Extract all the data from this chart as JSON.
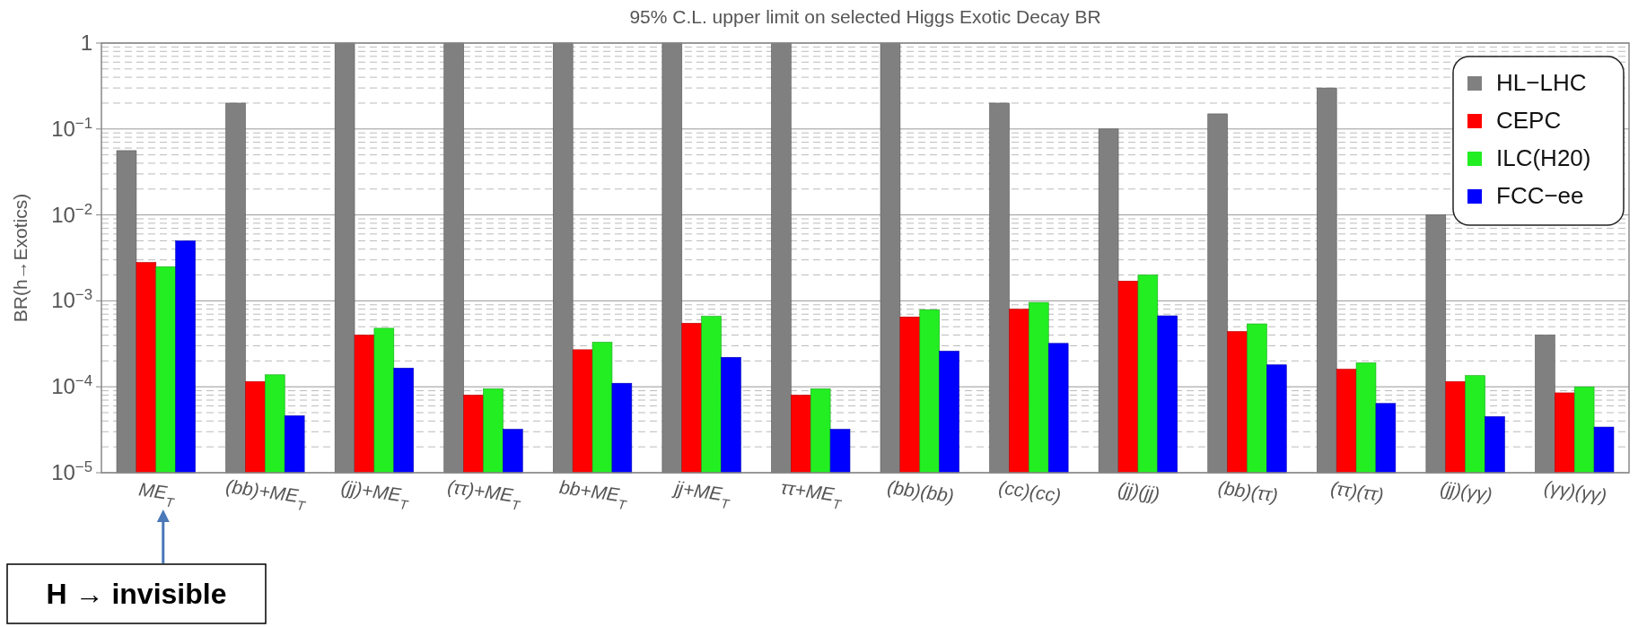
{
  "chart_data": {
    "type": "bar",
    "title": "95% C.L. upper limit on selected Higgs Exotic Decay BR",
    "ylabel": "BR(h→Exotics)",
    "categories": [
      "ME$_{T}$",
      "(bb)+ME$_{T}$",
      "(jj)+ME$_{T}$",
      "(ττ)+ME$_{T}$",
      "bb+ME$_{T}$",
      "jj+ME$_{T}$",
      "ττ+ME$_{T}$",
      "(bb)(bb)",
      "(cc)(cc)",
      "(jj)(jj)",
      "(bb)(ττ)",
      "(ττ)(ττ)",
      "(jj)(γγ)",
      "(γγ)(γγ)"
    ],
    "series": [
      {
        "name": "HL−LHC",
        "color": "#808080",
        "values": [
          0.056,
          0.2,
          1,
          1,
          1,
          1,
          1,
          1,
          0.2,
          0.1,
          0.15,
          0.3,
          0.01,
          0.0004
        ]
      },
      {
        "name": "CEPC",
        "color": "#ff0000",
        "values": [
          0.0028,
          0.000115,
          0.0004,
          8e-05,
          0.00027,
          0.00055,
          8e-05,
          0.00065,
          0.0008,
          0.0017,
          0.00044,
          0.00016,
          0.000115,
          8.5e-05
        ]
      },
      {
        "name": "ILC(H20)",
        "color": "#22ee22",
        "values": [
          0.0025,
          0.000138,
          0.00048,
          9.5e-05,
          0.00033,
          0.00066,
          9.5e-05,
          0.00079,
          0.00096,
          0.002,
          0.00054,
          0.00019,
          0.000135,
          0.0001
        ]
      },
      {
        "name": "FCC−ee",
        "color": "#0000ff",
        "values": [
          0.005,
          4.6e-05,
          0.000165,
          3.2e-05,
          0.00011,
          0.00022,
          3.2e-05,
          0.00026,
          0.00032,
          0.00067,
          0.00018,
          6.4e-05,
          4.5e-05,
          3.4e-05
        ]
      }
    ],
    "log": true,
    "ylim": [
      1e-05,
      1
    ],
    "yticks": [
      {
        "value": 1e-05,
        "label": "10$^{−5}$"
      },
      {
        "value": 0.0001,
        "label": "10$^{−4}$"
      },
      {
        "value": 0.001,
        "label": "10$^{−3}$"
      },
      {
        "value": 0.01,
        "label": "10$^{−2}$"
      },
      {
        "value": 0.1,
        "label": "10$^{−1}$"
      },
      1
    ],
    "grid": "y",
    "legend": "top right",
    "annotations": [
      "H → invisible"
    ]
  }
}
